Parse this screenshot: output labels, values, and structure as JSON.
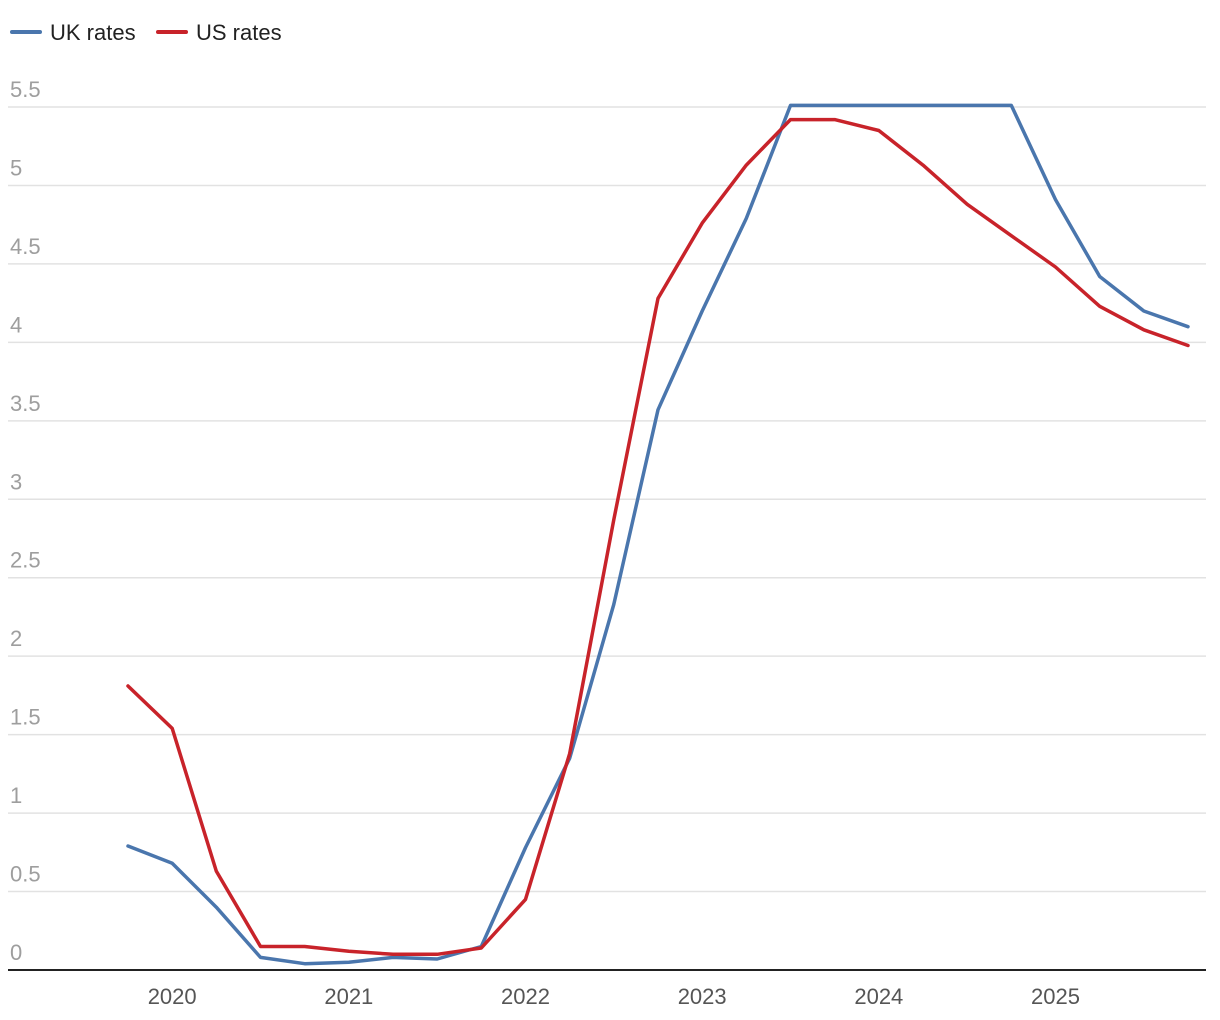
{
  "chart_data": {
    "type": "line",
    "title": "",
    "xlabel": "",
    "ylabel": "",
    "x_ticks": [
      "2020",
      "2021",
      "2022",
      "2023",
      "2024",
      "2025"
    ],
    "y_ticks": [
      "0",
      "0.5",
      "1",
      "1.5",
      "2",
      "2.5",
      "3",
      "3.5",
      "4",
      "4.5",
      "5",
      "5.5"
    ],
    "ylim": [
      0,
      5.5
    ],
    "xlim": [
      2019.25,
      2026.2
    ],
    "grid": true,
    "legend_position": "top-left",
    "x": [
      2019.75,
      2020.0,
      2020.25,
      2020.5,
      2020.75,
      2021.0,
      2021.25,
      2021.5,
      2021.75,
      2022.0,
      2022.25,
      2022.5,
      2022.75,
      2023.0,
      2023.25,
      2023.5,
      2023.75,
      2024.0,
      2024.25,
      2024.5,
      2024.75,
      2025.0,
      2025.25,
      2025.5,
      2025.75
    ],
    "series": [
      {
        "name": "UK rates",
        "color": "#4a76ad",
        "values": [
          0.79,
          0.68,
          0.4,
          0.08,
          0.04,
          0.05,
          0.08,
          0.07,
          0.15,
          0.78,
          1.35,
          2.33,
          3.57,
          4.2,
          4.79,
          5.51,
          5.51,
          5.51,
          5.51,
          5.51,
          5.51,
          4.91,
          4.42,
          4.2,
          4.1
        ]
      },
      {
        "name": "US rates",
        "color": "#c8232a",
        "values": [
          1.81,
          1.54,
          0.63,
          0.15,
          0.15,
          0.12,
          0.1,
          0.1,
          0.14,
          0.45,
          1.38,
          2.87,
          4.28,
          4.76,
          5.13,
          5.42,
          5.42,
          5.35,
          5.13,
          4.88,
          4.68,
          4.48,
          4.23,
          4.08,
          3.98
        ]
      }
    ]
  }
}
